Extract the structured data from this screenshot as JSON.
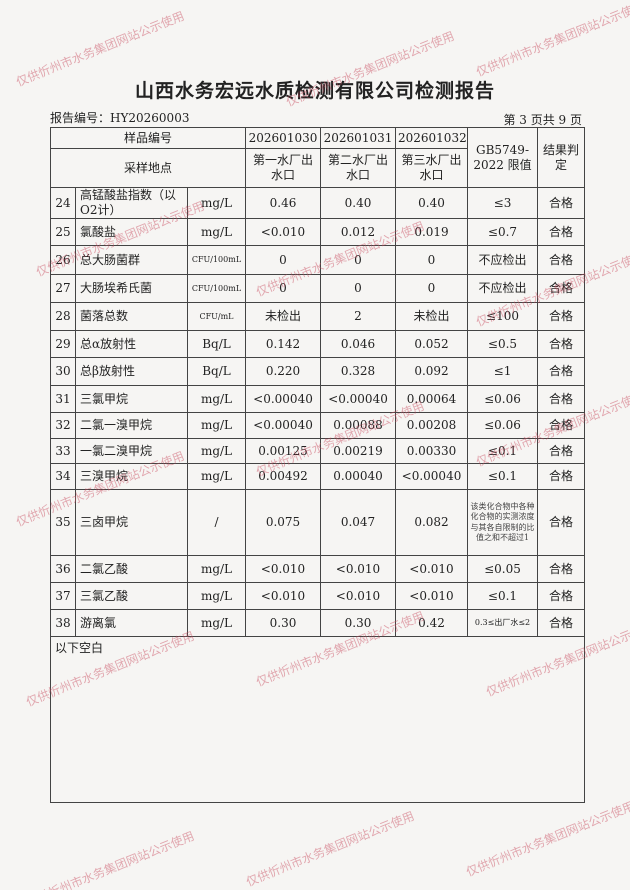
{
  "title": "山西水务宏远水质检测有限公司检测报告",
  "report_no": "报告编号：HY20260003",
  "page_info": "第 3 页共 9 页",
  "header": {
    "sample_no_label": "样品编号",
    "site_label": "采样地点",
    "samples": [
      "202601030",
      "202601031",
      "202601032"
    ],
    "sites": [
      "第一水厂出水口",
      "第二水厂出水口",
      "第三水厂出水口"
    ],
    "limit_label": "GB5749-2022 限值",
    "verdict_label": "结果判定"
  },
  "rows": [
    {
      "no": "24",
      "name": "高锰酸盐指数（以O2计）",
      "unit": "mg/L",
      "v": [
        "0.46",
        "0.40",
        "0.40"
      ],
      "limit": "≤3",
      "verdict": "合格"
    },
    {
      "no": "25",
      "name": "氯酸盐",
      "unit": "mg/L",
      "v": [
        "<0.010",
        "0.012",
        "0.019"
      ],
      "limit": "≤0.7",
      "verdict": "合格"
    },
    {
      "no": "26",
      "name": "总大肠菌群",
      "unit": "CFU/100mL",
      "v": [
        "0",
        "0",
        "0"
      ],
      "limit": "不应检出",
      "verdict": "合格"
    },
    {
      "no": "27",
      "name": "大肠埃希氏菌",
      "unit": "CFU/100mL",
      "v": [
        "0",
        "0",
        "0"
      ],
      "limit": "不应检出",
      "verdict": "合格"
    },
    {
      "no": "28",
      "name": "菌落总数",
      "unit": "CFU/mL",
      "v": [
        "未检出",
        "2",
        "未检出"
      ],
      "limit": "≤100",
      "verdict": "合格"
    },
    {
      "no": "29",
      "name": "总α放射性",
      "unit": "Bq/L",
      "v": [
        "0.142",
        "0.046",
        "0.052"
      ],
      "limit": "≤0.5",
      "verdict": "合格"
    },
    {
      "no": "30",
      "name": "总β放射性",
      "unit": "Bq/L",
      "v": [
        "0.220",
        "0.328",
        "0.092"
      ],
      "limit": "≤1",
      "verdict": "合格"
    },
    {
      "no": "31",
      "name": "三氯甲烷",
      "unit": "mg/L",
      "v": [
        "<0.00040",
        "<0.00040",
        "0.00064"
      ],
      "limit": "≤0.06",
      "verdict": "合格"
    },
    {
      "no": "32",
      "name": "二氯一溴甲烷",
      "unit": "mg/L",
      "v": [
        "<0.00040",
        "0.00088",
        "0.00208"
      ],
      "limit": "≤0.06",
      "verdict": "合格"
    },
    {
      "no": "33",
      "name": "一氯二溴甲烷",
      "unit": "mg/L",
      "v": [
        "0.00125",
        "0.00219",
        "0.00330"
      ],
      "limit": "≤0.1",
      "verdict": "合格"
    },
    {
      "no": "34",
      "name": "三溴甲烷",
      "unit": "mg/L",
      "v": [
        "0.00492",
        "0.00040",
        "<0.00040"
      ],
      "limit": "≤0.1",
      "verdict": "合格"
    },
    {
      "no": "35",
      "name": "三卤甲烷",
      "unit": "/",
      "v": [
        "0.075",
        "0.047",
        "0.082"
      ],
      "limit": "该类化合物中各种化合物的实测浓度与其各自限制的比值之和不超过1",
      "verdict": "合格"
    },
    {
      "no": "36",
      "name": "二氯乙酸",
      "unit": "mg/L",
      "v": [
        "<0.010",
        "<0.010",
        "<0.010"
      ],
      "limit": "≤0.05",
      "verdict": "合格"
    },
    {
      "no": "37",
      "name": "三氯乙酸",
      "unit": "mg/L",
      "v": [
        "<0.010",
        "<0.010",
        "<0.010"
      ],
      "limit": "≤0.1",
      "verdict": "合格"
    },
    {
      "no": "38",
      "name": "游离氯",
      "unit": "mg/L",
      "v": [
        "0.30",
        "0.30",
        "0.42"
      ],
      "limit": "0.3≤出厂水≤2",
      "verdict": "合格"
    }
  ],
  "blank_note": "以下空白",
  "watermark": "仅供忻州市水务集团网站公示使用"
}
